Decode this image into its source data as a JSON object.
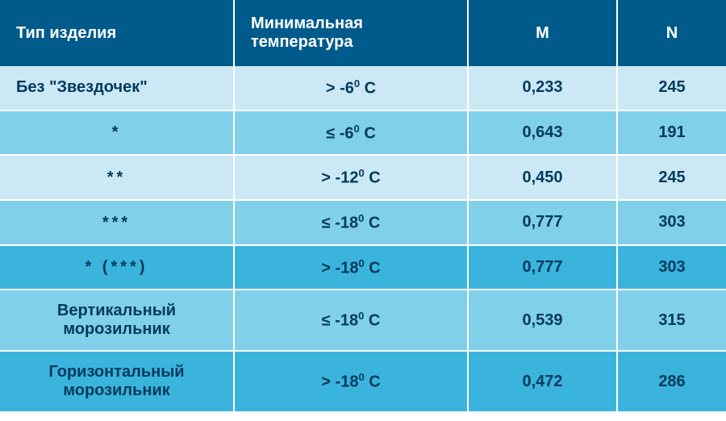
{
  "header": {
    "type": "Тип изделия",
    "temp": "Минимальная температура",
    "m": "M",
    "n": "N"
  },
  "rows": [
    {
      "type_html": "Без \"Звездочек\"",
      "stars": false,
      "temp_html": "> -6<sup>0</sup> C",
      "m": "0,233",
      "n": "245",
      "rowClass": "row-light",
      "typeAlign": "left"
    },
    {
      "type_html": "*",
      "stars": true,
      "temp_html": "≤ -6<sup>0</sup> C",
      "m": "0,643",
      "n": "191",
      "rowClass": "row-mid",
      "typeAlign": "center"
    },
    {
      "type_html": "**",
      "stars": true,
      "temp_html": "> -12<sup>0</sup> C",
      "m": "0,450",
      "n": "245",
      "rowClass": "row-light",
      "typeAlign": "center"
    },
    {
      "type_html": "***",
      "stars": true,
      "temp_html": "≤ -18<sup>0</sup> C",
      "m": "0,777",
      "n": "303",
      "rowClass": "row-mid",
      "typeAlign": "center"
    },
    {
      "type_html": "* (***)",
      "stars": true,
      "temp_html": "> -18<sup>0</sup> C",
      "m": "0,777",
      "n": "303",
      "rowClass": "row-dark",
      "typeAlign": "center"
    },
    {
      "type_html": "Вертикальный<br>морозильник",
      "stars": false,
      "temp_html": "≤ -18<sup>0</sup> C",
      "m": "0,539",
      "n": "315",
      "rowClass": "row-mid",
      "typeAlign": "center"
    },
    {
      "type_html": "Горизонтальный<br>морозильник",
      "stars": false,
      "temp_html": "> -18<sup>0</sup> C",
      "m": "0,472",
      "n": "286",
      "rowClass": "row-dark",
      "typeAlign": "center"
    }
  ]
}
